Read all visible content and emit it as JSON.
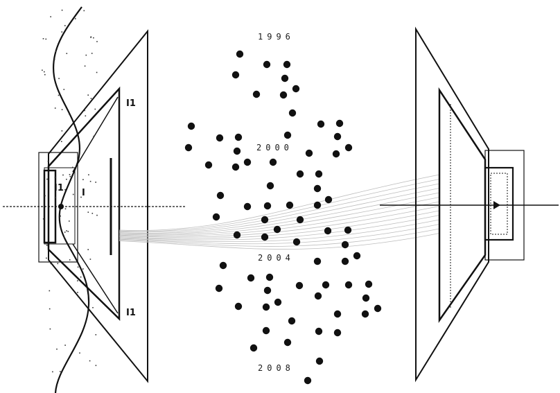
{
  "years": [
    "1996",
    "2000",
    "2004",
    "2008"
  ],
  "left_labels": [
    "I1",
    "I1",
    "I1",
    "I"
  ],
  "colors": {
    "ink": "#111111",
    "beam": "#bdbdbd",
    "background": "#ffffff"
  }
}
